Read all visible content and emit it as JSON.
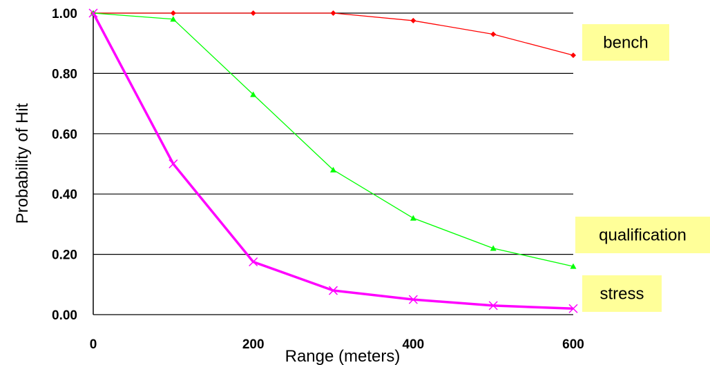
{
  "chart_data": {
    "type": "line",
    "xlabel": "Range (meters)",
    "ylabel": "Probability of Hit",
    "xlim": [
      0,
      600
    ],
    "ylim": [
      0,
      1.0
    ],
    "x_ticks": [
      "0",
      "200",
      "400",
      "600"
    ],
    "y_ticks": [
      "0.00",
      "0.20",
      "0.40",
      "0.60",
      "0.80",
      "1.00"
    ],
    "grid": "horizontal",
    "x": [
      0,
      100,
      200,
      300,
      400,
      500,
      600
    ],
    "series": [
      {
        "name": "bench",
        "color": "#ff0000",
        "marker": "diamond",
        "values": [
          1.0,
          1.0,
          1.0,
          1.0,
          0.975,
          0.93,
          0.86
        ]
      },
      {
        "name": "qualification",
        "color": "#00ff00",
        "marker": "triangle",
        "values": [
          1.0,
          0.98,
          0.73,
          0.48,
          0.32,
          0.22,
          0.16
        ]
      },
      {
        "name": "stress",
        "color": "#ff00ff",
        "marker": "x",
        "values": [
          1.0,
          0.5,
          0.175,
          0.08,
          0.05,
          0.03,
          0.02
        ]
      }
    ],
    "legend_style": "labels at line ends, right side, pale yellow boxes",
    "legend_box_color": "#ffff99"
  }
}
